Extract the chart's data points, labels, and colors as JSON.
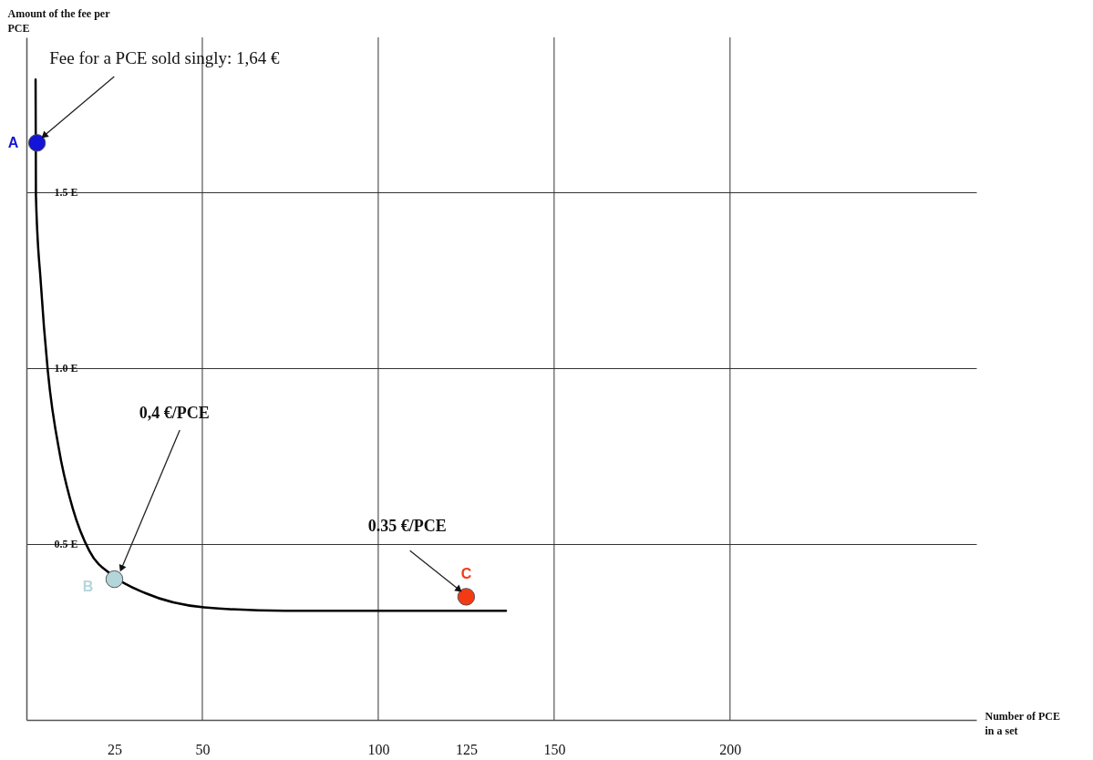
{
  "chart_data": {
    "type": "line",
    "xlabel": "Number of PCE in a set",
    "ylabel": "Amount of the fee per PCE",
    "xlim": [
      0,
      270
    ],
    "ylim": [
      0,
      1.94
    ],
    "xticks": [
      25,
      50,
      100,
      125,
      150,
      200
    ],
    "yticks": [
      {
        "value": 0.5,
        "label": "0.5 E"
      },
      {
        "value": 1.0,
        "label": "1.0 E"
      },
      {
        "value": 1.5,
        "label": "1.5 E"
      }
    ],
    "grid": "y",
    "ref_lines": [
      {
        "axis": "x",
        "value": 50,
        "color": "#333333"
      },
      {
        "axis": "x",
        "value": 100,
        "color": "#333333"
      },
      {
        "axis": "x",
        "value": 150,
        "color": "#333333"
      },
      {
        "axis": "x",
        "value": 200,
        "color": "#333333"
      }
    ],
    "series": [
      {
        "color": "#000000",
        "marker": "none",
        "x": [
          2.6,
          2.7,
          4.1,
          6.1,
          9.6,
          13.2,
          17.9,
          24.6,
          33.9,
          50.5,
          73.6,
          136.3
        ],
        "values": [
          1.82,
          1.49,
          1.24,
          0.99,
          0.75,
          0.6,
          0.48,
          0.41,
          0.36,
          0.32,
          0.31,
          0.31
        ]
      },
      {
        "name": "A",
        "type": "scatter",
        "color": "#1414d8",
        "marker": "circle",
        "x": [
          3
        ],
        "values": [
          1.64
        ]
      },
      {
        "name": "B",
        "type": "scatter",
        "color": "#b4d6da",
        "marker": "circle",
        "x": [
          25
        ],
        "values": [
          0.4
        ]
      },
      {
        "name": "C",
        "type": "scatter",
        "color": "#f43a14",
        "marker": "circle",
        "x": [
          125
        ],
        "values": [
          0.35
        ]
      }
    ],
    "annotations": [
      {
        "text": "Fee for a PCE sold singly: 1,64 €",
        "x": 5,
        "y": 1.66
      },
      {
        "text": "0,4 €/PCE",
        "x": 27,
        "y": 0.43
      },
      {
        "text": "0.35 €/PCE",
        "x": 123,
        "y": 0.37
      }
    ]
  }
}
